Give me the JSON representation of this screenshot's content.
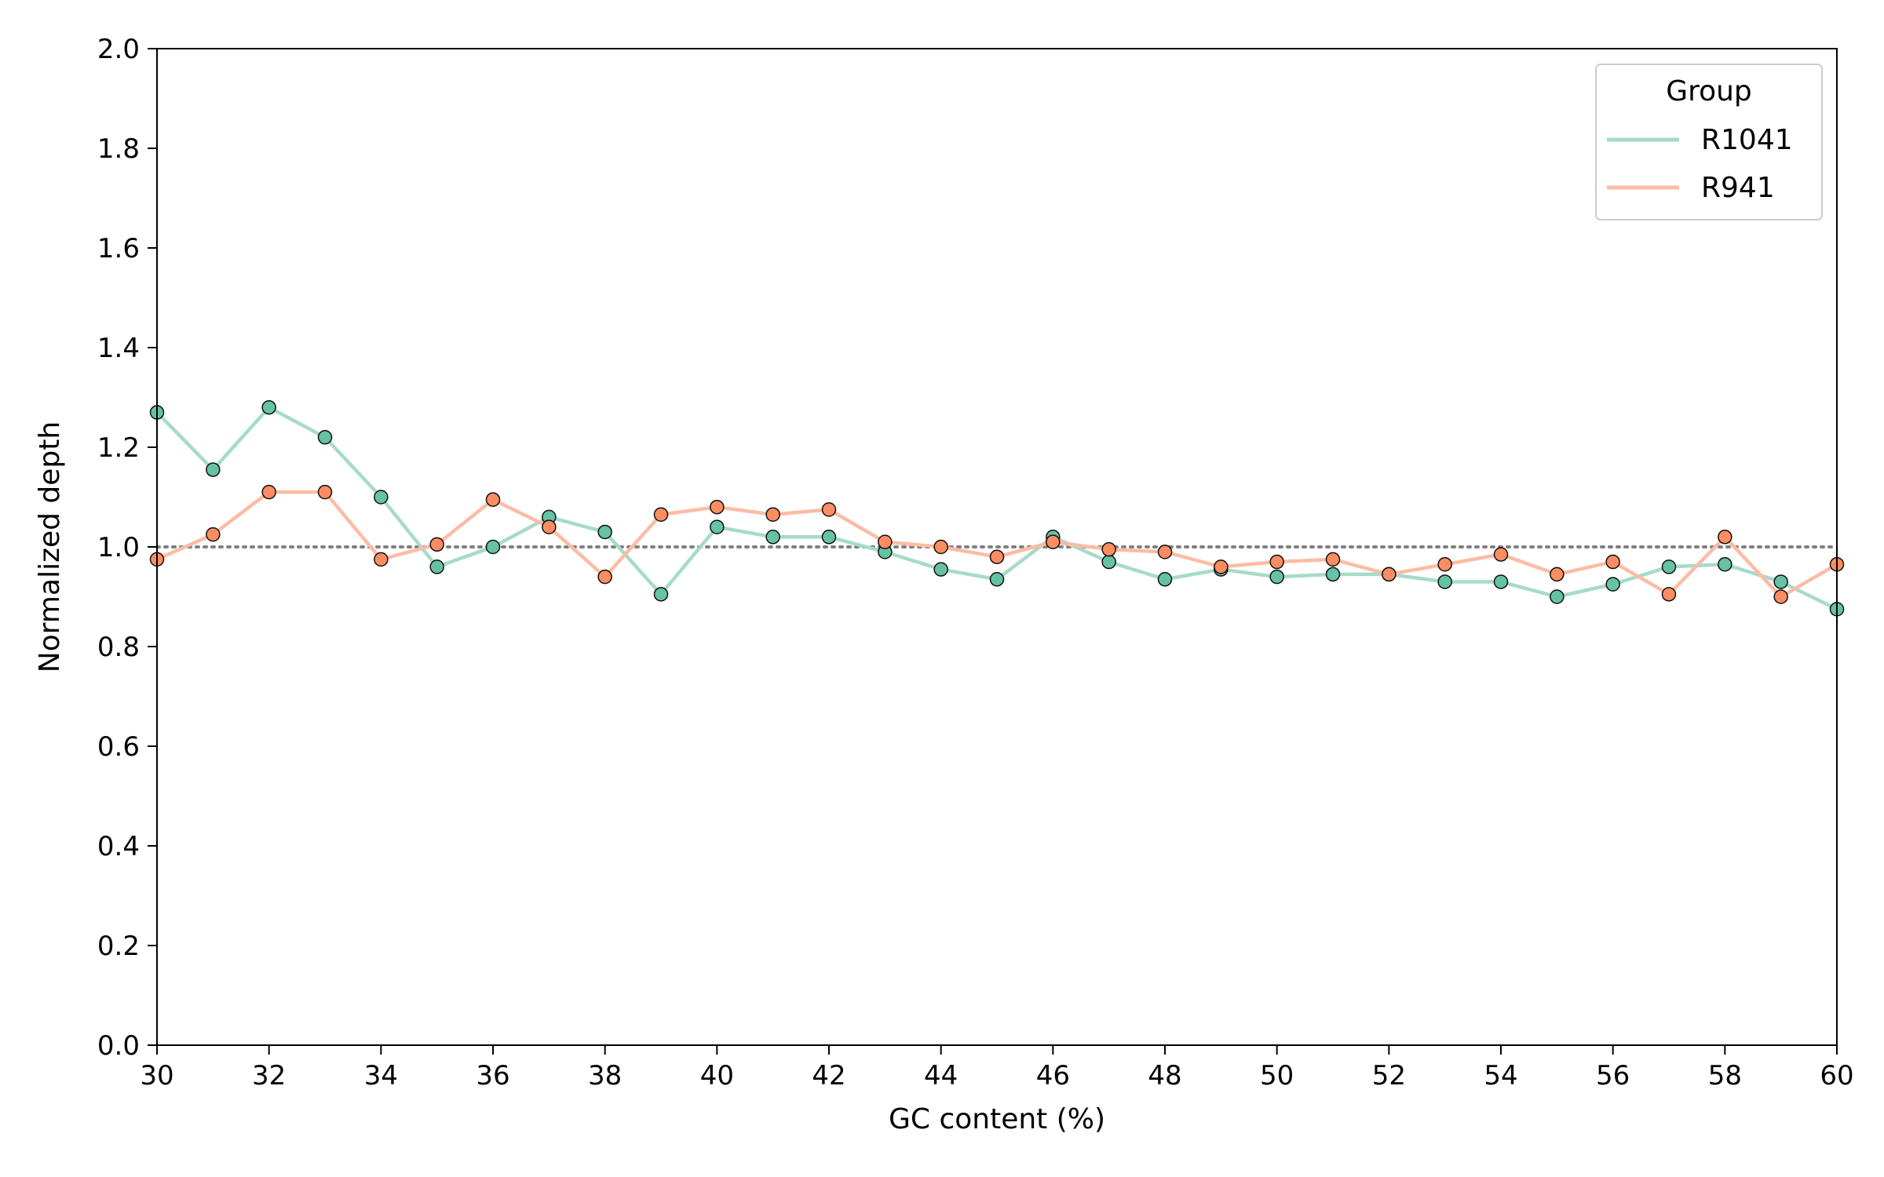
{
  "chart_data": {
    "type": "line",
    "title": "",
    "xlabel": "GC content (%)",
    "ylabel": "Normalized depth",
    "xlim": [
      30,
      60
    ],
    "ylim": [
      0,
      2.0
    ],
    "xticks": [
      30,
      32,
      34,
      36,
      38,
      40,
      42,
      44,
      46,
      48,
      50,
      52,
      54,
      56,
      58,
      60
    ],
    "yticks": [
      0.0,
      0.2,
      0.4,
      0.6,
      0.8,
      1.0,
      1.2,
      1.4,
      1.6,
      1.8,
      2.0
    ],
    "reference_line": {
      "y": 1.0,
      "style": "dotted",
      "color": "#808080"
    },
    "legend": {
      "title": "Group",
      "position": "top-right"
    },
    "x": [
      30,
      31,
      32,
      33,
      34,
      35,
      36,
      37,
      38,
      39,
      40,
      41,
      42,
      43,
      44,
      45,
      46,
      47,
      48,
      49,
      50,
      51,
      52,
      53,
      54,
      55,
      56,
      57,
      58,
      59,
      60
    ],
    "series": [
      {
        "name": "R1041",
        "line_color": "#a6dbc9",
        "marker_color": "#66c2a5",
        "values": [
          1.27,
          1.155,
          1.28,
          1.22,
          1.1,
          0.96,
          1.0,
          1.06,
          1.03,
          0.905,
          1.04,
          1.02,
          1.02,
          0.99,
          0.955,
          0.935,
          1.02,
          0.97,
          0.935,
          0.955,
          0.94,
          0.945,
          0.945,
          0.93,
          0.93,
          0.9,
          0.925,
          0.96,
          0.965,
          0.93,
          0.875
        ]
      },
      {
        "name": "R941",
        "line_color": "#fcbca4",
        "marker_color": "#fc8d62",
        "values": [
          0.975,
          1.025,
          1.11,
          1.11,
          0.975,
          1.005,
          1.095,
          1.04,
          0.94,
          1.065,
          1.08,
          1.065,
          1.075,
          1.01,
          1.0,
          0.98,
          1.01,
          0.995,
          0.99,
          0.96,
          0.97,
          0.975,
          0.945,
          0.965,
          0.985,
          0.945,
          0.97,
          0.905,
          1.02,
          0.9,
          0.965
        ]
      }
    ]
  }
}
